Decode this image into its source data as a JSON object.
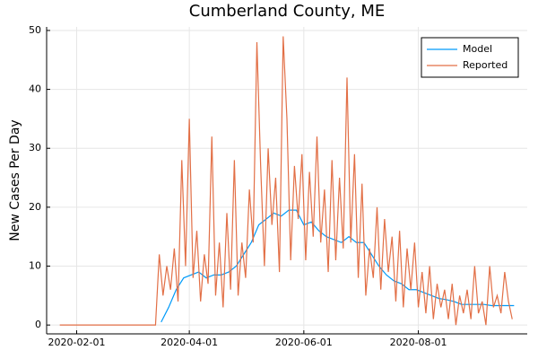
{
  "chart_data": {
    "type": "line",
    "title": "Cumberland County, ME",
    "y_label": "New Cases Per Day",
    "xlim": [
      "2020-01-16",
      "2020-09-28"
    ],
    "xticks": [
      "2020-02-01",
      "2020-04-01",
      "2020-06-01",
      "2020-08-01"
    ],
    "ylim": [
      -1.5,
      50.6
    ],
    "yticks": [
      0,
      10,
      20,
      30,
      40,
      50
    ],
    "grid": true,
    "legend": "top-right",
    "series": [
      {
        "name": "Model",
        "color": "#009af9",
        "x": [
          "2020-03-17",
          "2020-03-21",
          "2020-03-25",
          "2020-03-29",
          "2020-04-02",
          "2020-04-06",
          "2020-04-10",
          "2020-04-14",
          "2020-04-18",
          "2020-04-22",
          "2020-04-26",
          "2020-04-30",
          "2020-05-04",
          "2020-05-08",
          "2020-05-12",
          "2020-05-16",
          "2020-05-20",
          "2020-05-24",
          "2020-05-28",
          "2020-06-01",
          "2020-06-05",
          "2020-06-09",
          "2020-06-13",
          "2020-06-17",
          "2020-06-21",
          "2020-06-25",
          "2020-06-29",
          "2020-07-03",
          "2020-07-07",
          "2020-07-11",
          "2020-07-15",
          "2020-07-19",
          "2020-07-23",
          "2020-07-27",
          "2020-07-31",
          "2020-08-04",
          "2020-08-08",
          "2020-08-12",
          "2020-08-16",
          "2020-08-20",
          "2020-08-24",
          "2020-08-28",
          "2020-09-01",
          "2020-09-05",
          "2020-09-09",
          "2020-09-13",
          "2020-09-17",
          "2020-09-21"
        ],
        "values": [
          0.5,
          3,
          6,
          8,
          8.5,
          9,
          8,
          8.5,
          8.5,
          9,
          10,
          12,
          14,
          17,
          18,
          19,
          18.5,
          19.5,
          19.5,
          17,
          17.5,
          16,
          15,
          14.5,
          14,
          15,
          14,
          14,
          12,
          10,
          8.5,
          7.5,
          7,
          6,
          6,
          5.5,
          5,
          4.5,
          4.3,
          4,
          3.5,
          3.5,
          3.5,
          3.5,
          3.3,
          3.3,
          3.3,
          3.3
        ]
      },
      {
        "name": "Reported",
        "color": "#e26f46",
        "x": [
          "2020-01-23",
          "2020-03-14",
          "2020-03-16",
          "2020-03-18",
          "2020-03-20",
          "2020-03-22",
          "2020-03-24",
          "2020-03-26",
          "2020-03-28",
          "2020-03-30",
          "2020-04-01",
          "2020-04-03",
          "2020-04-05",
          "2020-04-07",
          "2020-04-09",
          "2020-04-11",
          "2020-04-13",
          "2020-04-15",
          "2020-04-17",
          "2020-04-19",
          "2020-04-21",
          "2020-04-23",
          "2020-04-25",
          "2020-04-27",
          "2020-04-29",
          "2020-05-01",
          "2020-05-03",
          "2020-05-05",
          "2020-05-07",
          "2020-05-09",
          "2020-05-11",
          "2020-05-13",
          "2020-05-15",
          "2020-05-17",
          "2020-05-19",
          "2020-05-21",
          "2020-05-23",
          "2020-05-25",
          "2020-05-27",
          "2020-05-29",
          "2020-05-31",
          "2020-06-02",
          "2020-06-04",
          "2020-06-06",
          "2020-06-08",
          "2020-06-10",
          "2020-06-12",
          "2020-06-14",
          "2020-06-16",
          "2020-06-18",
          "2020-06-20",
          "2020-06-22",
          "2020-06-24",
          "2020-06-26",
          "2020-06-28",
          "2020-06-30",
          "2020-07-02",
          "2020-07-04",
          "2020-07-06",
          "2020-07-08",
          "2020-07-10",
          "2020-07-12",
          "2020-07-14",
          "2020-07-16",
          "2020-07-18",
          "2020-07-20",
          "2020-07-22",
          "2020-07-24",
          "2020-07-26",
          "2020-07-28",
          "2020-07-30",
          "2020-08-01",
          "2020-08-03",
          "2020-08-05",
          "2020-08-07",
          "2020-08-09",
          "2020-08-11",
          "2020-08-13",
          "2020-08-15",
          "2020-08-17",
          "2020-08-19",
          "2020-08-21",
          "2020-08-23",
          "2020-08-25",
          "2020-08-27",
          "2020-08-29",
          "2020-08-31",
          "2020-09-02",
          "2020-09-04",
          "2020-09-06",
          "2020-09-08",
          "2020-09-10",
          "2020-09-12",
          "2020-09-14",
          "2020-09-16",
          "2020-09-18",
          "2020-09-20"
        ],
        "values": [
          0,
          0,
          12,
          5,
          10,
          6,
          13,
          4,
          28,
          10,
          35,
          8,
          16,
          4,
          12,
          7,
          32,
          5,
          14,
          3,
          19,
          6,
          28,
          5,
          14,
          8,
          23,
          14,
          48,
          27,
          10,
          30,
          17,
          25,
          9,
          49,
          35,
          11,
          27,
          18,
          29,
          11,
          26,
          15,
          32,
          14,
          23,
          9,
          28,
          11,
          25,
          13,
          42,
          14,
          29,
          8,
          24,
          5,
          13,
          8,
          20,
          6,
          18,
          9,
          15,
          4,
          16,
          3,
          13,
          6,
          14,
          3,
          9,
          2,
          10,
          1,
          7,
          3,
          6,
          1,
          7,
          0,
          5,
          2,
          6,
          1,
          10,
          2,
          4,
          0,
          10,
          3,
          5,
          2,
          9,
          4,
          1
        ]
      }
    ]
  }
}
